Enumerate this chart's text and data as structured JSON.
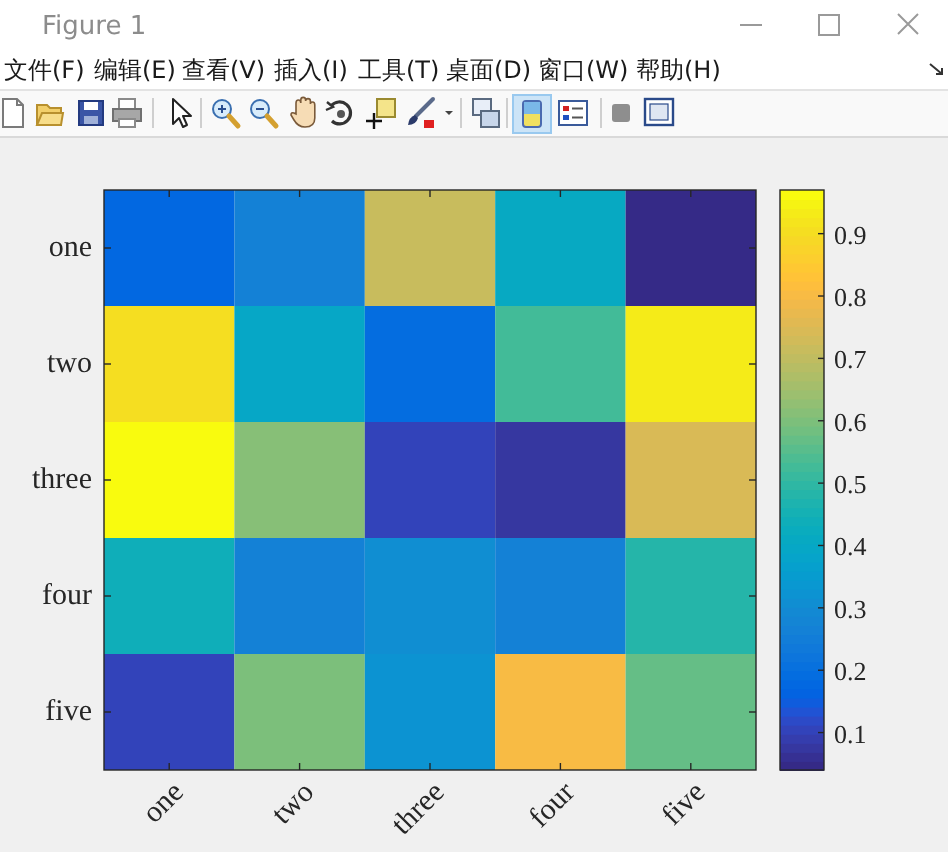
{
  "chart_data": {
    "type": "heatmap",
    "categories": [
      "one",
      "two",
      "three",
      "four",
      "five"
    ],
    "y_categories": [
      "one",
      "two",
      "three",
      "four",
      "five"
    ],
    "cells": [
      [
        0.18,
        0.26,
        0.72,
        0.41,
        0.04
      ],
      [
        0.9,
        0.4,
        0.19,
        0.52,
        0.93
      ],
      [
        0.97,
        0.61,
        0.11,
        0.08,
        0.75
      ],
      [
        0.44,
        0.26,
        0.31,
        0.27,
        0.48
      ],
      [
        0.11,
        0.6,
        0.32,
        0.81,
        0.57
      ]
    ],
    "clim": [
      0.04,
      0.97
    ],
    "cticks": [
      0.1,
      0.2,
      0.3,
      0.4,
      0.5,
      0.6,
      0.7,
      0.8,
      0.9
    ],
    "annotations": [
      "Figure 1",
      "文件(F)",
      "编辑(E)",
      "查看(V)",
      "插入(I)",
      "工具(T)",
      "桌面(D)",
      "窗口(W)",
      "帮助(H)"
    ]
  }
}
